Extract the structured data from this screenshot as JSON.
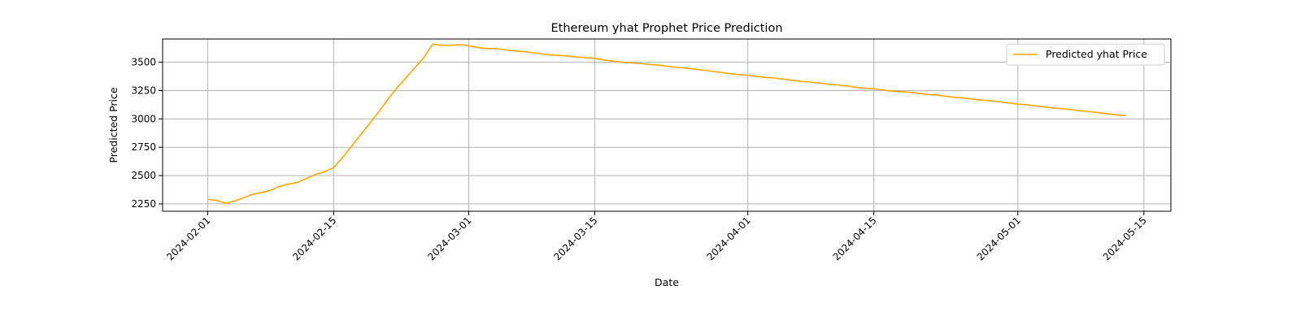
{
  "chart_data": {
    "type": "line",
    "title": "Ethereum yhat Prophet Price Prediction",
    "xlabel": "Date",
    "ylabel": "Predicted Price",
    "x_type": "date",
    "xlim": [
      "2024-01-27",
      "2024-05-18"
    ],
    "ylim": [
      2185,
      3705
    ],
    "x_ticks": [
      "2024-02-01",
      "2024-02-15",
      "2024-03-01",
      "2024-03-15",
      "2024-04-01",
      "2024-04-15",
      "2024-05-01",
      "2024-05-15"
    ],
    "y_ticks": [
      2250,
      2500,
      2750,
      3000,
      3250,
      3500
    ],
    "grid": true,
    "legend_position": "top-right",
    "color": "#ffa500",
    "series": [
      {
        "name": "Predicted yhat Price",
        "color": "#ffa500",
        "points": [
          [
            "2024-02-01",
            2290
          ],
          [
            "2024-02-02",
            2280
          ],
          [
            "2024-02-03",
            2255
          ],
          [
            "2024-02-04",
            2275
          ],
          [
            "2024-02-05",
            2305
          ],
          [
            "2024-02-06",
            2335
          ],
          [
            "2024-02-07",
            2350
          ],
          [
            "2024-02-08",
            2370
          ],
          [
            "2024-02-09",
            2405
          ],
          [
            "2024-02-10",
            2425
          ],
          [
            "2024-02-11",
            2440
          ],
          [
            "2024-02-12",
            2475
          ],
          [
            "2024-02-13",
            2510
          ],
          [
            "2024-02-14",
            2535
          ],
          [
            "2024-02-15",
            2570
          ],
          [
            "2024-02-16",
            2660
          ],
          [
            "2024-02-17",
            2760
          ],
          [
            "2024-02-18",
            2860
          ],
          [
            "2024-02-19",
            2960
          ],
          [
            "2024-02-20",
            3060
          ],
          [
            "2024-02-21",
            3170
          ],
          [
            "2024-02-22",
            3270
          ],
          [
            "2024-02-23",
            3360
          ],
          [
            "2024-02-24",
            3450
          ],
          [
            "2024-02-25",
            3540
          ],
          [
            "2024-02-26",
            3660
          ],
          [
            "2024-02-27",
            3650
          ],
          [
            "2024-02-28",
            3650
          ],
          [
            "2024-02-29",
            3655
          ],
          [
            "2024-03-01",
            3645
          ],
          [
            "2024-03-02",
            3630
          ],
          [
            "2024-03-03",
            3620
          ],
          [
            "2024-03-04",
            3620
          ],
          [
            "2024-03-05",
            3610
          ],
          [
            "2024-03-06",
            3600
          ],
          [
            "2024-03-07",
            3595
          ],
          [
            "2024-03-08",
            3585
          ],
          [
            "2024-03-09",
            3575
          ],
          [
            "2024-03-10",
            3565
          ],
          [
            "2024-03-11",
            3560
          ],
          [
            "2024-03-12",
            3555
          ],
          [
            "2024-03-13",
            3545
          ],
          [
            "2024-03-14",
            3540
          ],
          [
            "2024-03-15",
            3535
          ],
          [
            "2024-03-16",
            3520
          ],
          [
            "2024-03-17",
            3510
          ],
          [
            "2024-03-18",
            3500
          ],
          [
            "2024-03-19",
            3495
          ],
          [
            "2024-03-20",
            3490
          ],
          [
            "2024-03-21",
            3480
          ],
          [
            "2024-03-22",
            3475
          ],
          [
            "2024-03-23",
            3465
          ],
          [
            "2024-03-24",
            3455
          ],
          [
            "2024-03-25",
            3450
          ],
          [
            "2024-03-26",
            3440
          ],
          [
            "2024-03-27",
            3430
          ],
          [
            "2024-03-28",
            3420
          ],
          [
            "2024-03-29",
            3410
          ],
          [
            "2024-03-30",
            3400
          ],
          [
            "2024-03-31",
            3390
          ],
          [
            "2024-04-01",
            3385
          ],
          [
            "2024-04-02",
            3375
          ],
          [
            "2024-04-03",
            3365
          ],
          [
            "2024-04-04",
            3360
          ],
          [
            "2024-04-05",
            3350
          ],
          [
            "2024-04-06",
            3340
          ],
          [
            "2024-04-07",
            3330
          ],
          [
            "2024-04-08",
            3325
          ],
          [
            "2024-04-09",
            3315
          ],
          [
            "2024-04-10",
            3305
          ],
          [
            "2024-04-11",
            3300
          ],
          [
            "2024-04-12",
            3290
          ],
          [
            "2024-04-13",
            3280
          ],
          [
            "2024-04-14",
            3270
          ],
          [
            "2024-04-15",
            3265
          ],
          [
            "2024-04-16",
            3255
          ],
          [
            "2024-04-17",
            3245
          ],
          [
            "2024-04-18",
            3240
          ],
          [
            "2024-04-19",
            3235
          ],
          [
            "2024-04-20",
            3225
          ],
          [
            "2024-04-21",
            3215
          ],
          [
            "2024-04-22",
            3210
          ],
          [
            "2024-04-23",
            3200
          ],
          [
            "2024-04-24",
            3190
          ],
          [
            "2024-04-25",
            3185
          ],
          [
            "2024-04-26",
            3175
          ],
          [
            "2024-04-27",
            3165
          ],
          [
            "2024-04-28",
            3160
          ],
          [
            "2024-04-29",
            3150
          ],
          [
            "2024-04-30",
            3140
          ],
          [
            "2024-05-01",
            3130
          ],
          [
            "2024-05-02",
            3125
          ],
          [
            "2024-05-03",
            3115
          ],
          [
            "2024-05-04",
            3105
          ],
          [
            "2024-05-05",
            3095
          ],
          [
            "2024-05-06",
            3090
          ],
          [
            "2024-05-07",
            3080
          ],
          [
            "2024-05-08",
            3070
          ],
          [
            "2024-05-09",
            3065
          ],
          [
            "2024-05-10",
            3055
          ],
          [
            "2024-05-11",
            3045
          ],
          [
            "2024-05-12",
            3035
          ],
          [
            "2024-05-13",
            3030
          ]
        ]
      }
    ]
  }
}
